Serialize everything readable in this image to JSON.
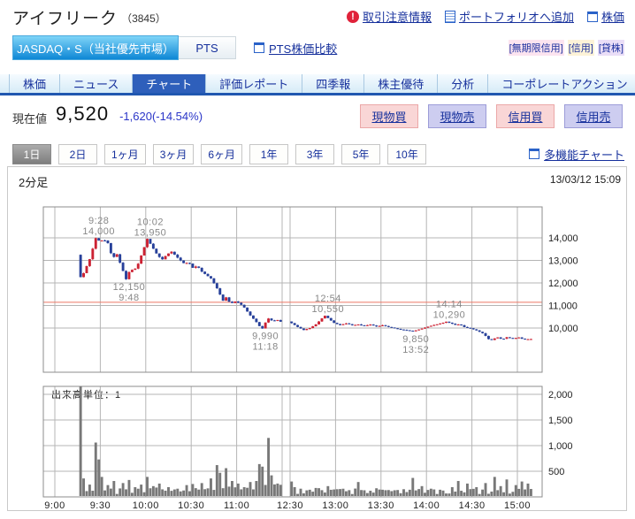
{
  "header": {
    "title": "アイフリーク",
    "code": "（3845）",
    "links": [
      {
        "icon": "alert-icon",
        "label": "取引注意情報"
      },
      {
        "icon": "portfolio-doc-icon",
        "label": "ポートフォリオへ追加"
      },
      {
        "icon": "window-icon",
        "label": "株価"
      }
    ]
  },
  "market_tabs": {
    "selected": "JASDAQ・S（当社優先市場）",
    "other": "PTS",
    "compare_link": "PTS株価比較",
    "tags": [
      {
        "label": "[無期限信用]",
        "bg": "#fce4f0"
      },
      {
        "label": "[信用]",
        "bg": "#fdf3d8"
      },
      {
        "label": "[貸株]",
        "bg": "#eadef7"
      }
    ]
  },
  "nav_tabs": {
    "items": [
      "株価",
      "ニュース",
      "チャート",
      "評価レポート",
      "四季報",
      "株主優待",
      "分析",
      "コーポレートアクション"
    ],
    "selected_index": 2
  },
  "price": {
    "label": "現在値",
    "value": "9,520",
    "change": "-1,620(-14.54%)",
    "change_color": "#2a35c8"
  },
  "trade_buttons": [
    {
      "label": "現物買",
      "kind": "buy"
    },
    {
      "label": "現物売",
      "kind": "sell"
    },
    {
      "label": "信用買",
      "kind": "buy"
    },
    {
      "label": "信用売",
      "kind": "sell"
    }
  ],
  "period_tabs": {
    "items": [
      "1日",
      "2日",
      "1ヶ月",
      "3ヶ月",
      "6ヶ月",
      "1年",
      "3年",
      "5年",
      "10年"
    ],
    "selected_index": 0,
    "multi_chart_link": "多機能チャート"
  },
  "chart_header": {
    "timeframe": "2分足",
    "timestamp": "13/03/12 15:09"
  },
  "chart_data": [
    {
      "type": "candlestick",
      "title": "2分足",
      "interval_minutes": 2,
      "sessions": [
        {
          "start": "9:00",
          "end": "11:30"
        },
        {
          "start": "12:30",
          "end": "15:10"
        }
      ],
      "first_trade": "9:16",
      "prev_close_line": 11140,
      "ylim": [
        8040,
        15370
      ],
      "yticks": [
        10000,
        11000,
        12000,
        13000,
        14000
      ],
      "ytick_labels": [
        "10,000",
        "11,000",
        "12,000",
        "13,000",
        "14,000"
      ],
      "grid_times": [
        "9:00",
        "9:30",
        "10:00",
        "10:30",
        "11:00",
        "11:30",
        "12:30",
        "13:00",
        "13:30",
        "14:00",
        "14:30",
        "15:00"
      ],
      "xtick_labels": [
        "9:00",
        "9:30",
        "10:00",
        "10:30",
        "11:00",
        "12:30",
        "13:00",
        "13:30",
        "14:00",
        "14:30",
        "15:00"
      ],
      "annotations": [
        {
          "time": "9:28",
          "price": 14000,
          "lines": [
            "9:28",
            "14,000"
          ],
          "placement": "above"
        },
        {
          "time": "10:02",
          "price": 13950,
          "lines": [
            "10:02",
            "13,950"
          ],
          "placement": "above"
        },
        {
          "time": "9:48",
          "price": 12150,
          "lines": [
            "12,150",
            "9:48"
          ],
          "placement": "below"
        },
        {
          "time": "11:18",
          "price": 9990,
          "lines": [
            "9,990",
            "11:18"
          ],
          "placement": "below"
        },
        {
          "time": "12:54",
          "price": 10550,
          "lines": [
            "12:54",
            "10,550"
          ],
          "placement": "above"
        },
        {
          "time": "13:52",
          "price": 9850,
          "lines": [
            "9,850",
            "13:52"
          ],
          "placement": "below"
        },
        {
          "time": "14:14",
          "price": 10290,
          "lines": [
            "14:14",
            "10,290"
          ],
          "placement": "above"
        }
      ],
      "price_anchors": [
        [
          "9:16",
          13250
        ],
        [
          "9:18",
          12250
        ],
        [
          "9:20",
          12420
        ],
        [
          "9:24",
          13050
        ],
        [
          "9:28",
          14000
        ],
        [
          "9:31",
          13840
        ],
        [
          "9:33",
          13940
        ],
        [
          "9:36",
          13760
        ],
        [
          "9:38",
          13320
        ],
        [
          "9:40",
          13160
        ],
        [
          "9:42",
          13280
        ],
        [
          "9:48",
          12150
        ],
        [
          "9:51",
          12620
        ],
        [
          "9:53",
          12520
        ],
        [
          "9:56",
          12860
        ],
        [
          "10:02",
          13950
        ],
        [
          "10:06",
          13520
        ],
        [
          "10:09",
          13220
        ],
        [
          "10:12",
          13060
        ],
        [
          "10:15",
          13260
        ],
        [
          "10:18",
          13370
        ],
        [
          "10:21",
          13180
        ],
        [
          "10:24",
          13000
        ],
        [
          "10:27",
          12820
        ],
        [
          "10:29",
          12940
        ],
        [
          "10:32",
          12660
        ],
        [
          "10:35",
          12760
        ],
        [
          "10:38",
          12520
        ],
        [
          "10:41",
          12360
        ],
        [
          "10:44",
          12200
        ],
        [
          "10:48",
          11760
        ],
        [
          "10:52",
          11220
        ],
        [
          "10:54",
          11360
        ],
        [
          "10:57",
          11060
        ],
        [
          "11:00",
          11160
        ],
        [
          "11:03",
          11090
        ],
        [
          "11:06",
          10920
        ],
        [
          "11:10",
          10560
        ],
        [
          "11:14",
          10260
        ],
        [
          "11:16",
          10090
        ],
        [
          "11:18",
          9990
        ],
        [
          "11:20",
          10260
        ],
        [
          "11:22",
          10430
        ],
        [
          "11:25",
          10290
        ],
        [
          "11:28",
          10340
        ],
        [
          "11:30",
          10270
        ],
        [
          "12:30",
          10290
        ],
        [
          "12:33",
          10180
        ],
        [
          "12:36",
          10050
        ],
        [
          "12:40",
          9900
        ],
        [
          "12:44",
          10000
        ],
        [
          "12:48",
          10180
        ],
        [
          "12:52",
          10430
        ],
        [
          "12:54",
          10540
        ],
        [
          "12:57",
          10380
        ],
        [
          "13:00",
          10230
        ],
        [
          "13:04",
          10130
        ],
        [
          "13:08",
          10190
        ],
        [
          "13:12",
          10120
        ],
        [
          "13:16",
          10170
        ],
        [
          "13:20",
          10100
        ],
        [
          "13:24",
          10150
        ],
        [
          "13:28",
          10080
        ],
        [
          "13:32",
          10130
        ],
        [
          "13:36",
          10030
        ],
        [
          "13:40",
          9980
        ],
        [
          "13:44",
          9940
        ],
        [
          "13:48",
          9900
        ],
        [
          "13:52",
          9850
        ],
        [
          "13:56",
          9950
        ],
        [
          "14:00",
          10030
        ],
        [
          "14:04",
          10090
        ],
        [
          "14:08",
          10160
        ],
        [
          "14:11",
          10220
        ],
        [
          "14:14",
          10280
        ],
        [
          "14:17",
          10200
        ],
        [
          "14:20",
          10130
        ],
        [
          "14:23",
          10170
        ],
        [
          "14:26",
          10060
        ],
        [
          "14:30",
          9990
        ],
        [
          "14:34",
          9890
        ],
        [
          "14:38",
          9780
        ],
        [
          "14:41",
          9600
        ],
        [
          "14:43",
          9420
        ],
        [
          "14:45",
          9500
        ],
        [
          "14:48",
          9570
        ],
        [
          "14:51",
          9490
        ],
        [
          "14:54",
          9600
        ],
        [
          "14:58",
          9530
        ],
        [
          "15:02",
          9580
        ],
        [
          "15:05",
          9510
        ],
        [
          "15:08",
          9520
        ]
      ],
      "last_price": 9520,
      "up_color": "#cc2233",
      "down_color": "#27409a",
      "grid_color": "#b5b5b5",
      "border_color": "#8c8c8c",
      "prev_close_color": "#ee7766",
      "annotation_color": "#888888",
      "noise_amp": 30
    },
    {
      "type": "bar",
      "title": "出来高単位：1",
      "ylim": [
        0,
        2150
      ],
      "yticks": [
        500,
        1000,
        1500,
        2000
      ],
      "ytick_labels": [
        "500",
        "1,000",
        "1,500",
        "2,000"
      ],
      "bar_color": "#787878",
      "volume_base": [
        55,
        185
      ],
      "volume_spikes": {
        "9:16": 2200,
        "9:18": 360,
        "9:22": 240,
        "9:26": 1060,
        "9:28": 730,
        "9:30": 390,
        "9:34": 230,
        "9:38": 310,
        "9:44": 270,
        "9:48": 330,
        "9:52": 190,
        "9:56": 240,
        "10:00": 390,
        "10:04": 210,
        "10:08": 260,
        "10:14": 190,
        "10:20": 160,
        "10:26": 230,
        "10:32": 170,
        "10:38": 150,
        "10:42": 360,
        "10:46": 620,
        "10:48": 470,
        "10:52": 560,
        "10:56": 310,
        "11:00": 260,
        "11:04": 190,
        "11:08": 290,
        "11:12": 310,
        "11:14": 640,
        "11:16": 590,
        "11:20": 1150,
        "11:22": 420,
        "11:26": 260,
        "12:30": 300,
        "12:32": 190,
        "12:36": 160,
        "12:42": 140,
        "12:48": 170,
        "12:54": 210,
        "13:00": 150,
        "13:06": 110,
        "13:14": 290,
        "13:22": 120,
        "13:30": 140,
        "13:38": 130,
        "13:44": 150,
        "13:50": 370,
        "13:56": 210,
        "14:02": 160,
        "14:08": 140,
        "14:16": 190,
        "14:20": 310,
        "14:26": 260,
        "14:32": 190,
        "14:38": 270,
        "14:44": 390,
        "14:48": 210,
        "14:52": 340,
        "14:58": 230,
        "15:02": 300,
        "15:06": 260
      }
    }
  ]
}
